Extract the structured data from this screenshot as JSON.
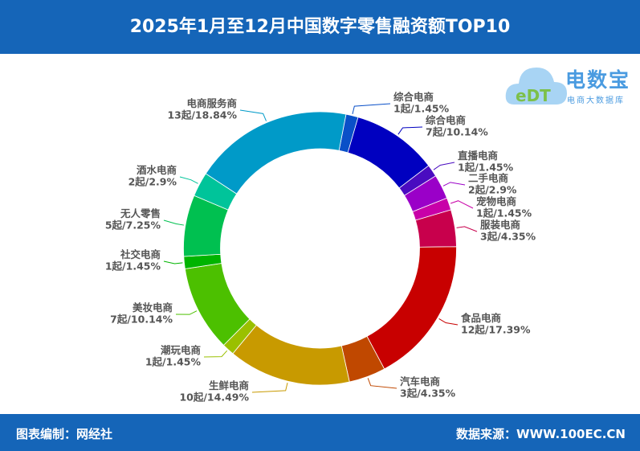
{
  "header": {
    "title": "2025年1月至12月中国数字零售融资额TOP10"
  },
  "logo": {
    "name": "电数宝",
    "subtitle": "电商大数据库",
    "mark": "eDT"
  },
  "footer": {
    "left": "图表编制：网经社",
    "right": "数据来源：WWW.100EC.CN"
  },
  "chart_data": {
    "type": "pie",
    "variant": "donut",
    "title": "2025年1月至12月中国数字零售融资额TOP10",
    "slices": [
      {
        "name": "综合电商",
        "count": "1起",
        "value": 1.45,
        "label": "1起/1.45%",
        "color": "#0a50c8"
      },
      {
        "name": "综合电商",
        "count": "7起",
        "value": 10.14,
        "label": "7起/10.14%",
        "color": "#0000c0"
      },
      {
        "name": "直播电商",
        "count": "1起",
        "value": 1.45,
        "label": "1起/1.45%",
        "color": "#4a0cc0"
      },
      {
        "name": "二手电商",
        "count": "2起",
        "value": 2.9,
        "label": "2起/2.9%",
        "color": "#9a00c8"
      },
      {
        "name": "宠物电商",
        "count": "1起",
        "value": 1.45,
        "label": "1起/1.45%",
        "color": "#c800a8"
      },
      {
        "name": "服装电商",
        "count": "3起",
        "value": 4.35,
        "label": "3起/4.35%",
        "color": "#c8004c"
      },
      {
        "name": "食品电商",
        "count": "12起",
        "value": 17.39,
        "label": "12起/17.39%",
        "color": "#c80000"
      },
      {
        "name": "汽车电商",
        "count": "3起",
        "value": 4.35,
        "label": "3起/4.35%",
        "color": "#c04800"
      },
      {
        "name": "生鲜电商",
        "count": "10起",
        "value": 14.49,
        "label": "10起/14.49%",
        "color": "#c89a00"
      },
      {
        "name": "潮玩电商",
        "count": "1起",
        "value": 1.45,
        "label": "1起/1.45%",
        "color": "#9ac000"
      },
      {
        "name": "美妆电商",
        "count": "7起",
        "value": 10.14,
        "label": "7起/10.14%",
        "color": "#4cc000"
      },
      {
        "name": "社交电商",
        "count": "1起",
        "value": 1.45,
        "label": "1起/1.45%",
        "color": "#00b400"
      },
      {
        "name": "无人零售",
        "count": "5起",
        "value": 7.25,
        "label": "5起/7.25%",
        "color": "#00c050"
      },
      {
        "name": "酒水电商",
        "count": "2起",
        "value": 2.9,
        "label": "2起/2.9%",
        "color": "#00c49a"
      },
      {
        "name": "电商服务商",
        "count": "13起",
        "value": 18.84,
        "label": "13起/18.84%",
        "color": "#009ac8"
      }
    ]
  }
}
